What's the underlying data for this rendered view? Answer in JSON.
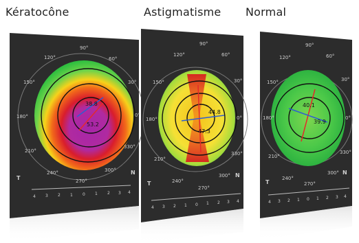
{
  "panels": [
    {
      "title": "Kératocône",
      "degree_labels": [
        "90°",
        "60°",
        "30°",
        "0°",
        "330°",
        "300°",
        "270°",
        "240°",
        "210°",
        "180°",
        "150°",
        "120°"
      ],
      "values": [
        "38.8",
        "53.2"
      ],
      "side_left": "T",
      "side_right": "N",
      "scale": [
        "4",
        "3",
        "2",
        "1",
        "0",
        "1",
        "2",
        "3",
        "4"
      ]
    },
    {
      "title": "Astigmatisme",
      "degree_labels": [
        "90°",
        "60°",
        "30°",
        "0°",
        "330°",
        "300°",
        "270°",
        "240°",
        "210°",
        "180°",
        "150°",
        "120°"
      ],
      "values": [
        "44.8",
        "47.3"
      ],
      "side_left": "T",
      "side_right": "N",
      "scale": [
        "4",
        "3",
        "2",
        "1",
        "0",
        "1",
        "2",
        "3",
        "4"
      ]
    },
    {
      "title": "Normal",
      "degree_labels": [
        "90°",
        "60°",
        "30°",
        "0°",
        "330°",
        "300°",
        "270°",
        "240°",
        "210°",
        "180°",
        "150°",
        "120°"
      ],
      "values": [
        "40.1",
        "39.9"
      ],
      "side_left": "T",
      "side_right": "N",
      "scale": [
        "4",
        "3",
        "2",
        "1",
        "0",
        "1",
        "2",
        "3",
        "4"
      ]
    }
  ]
}
